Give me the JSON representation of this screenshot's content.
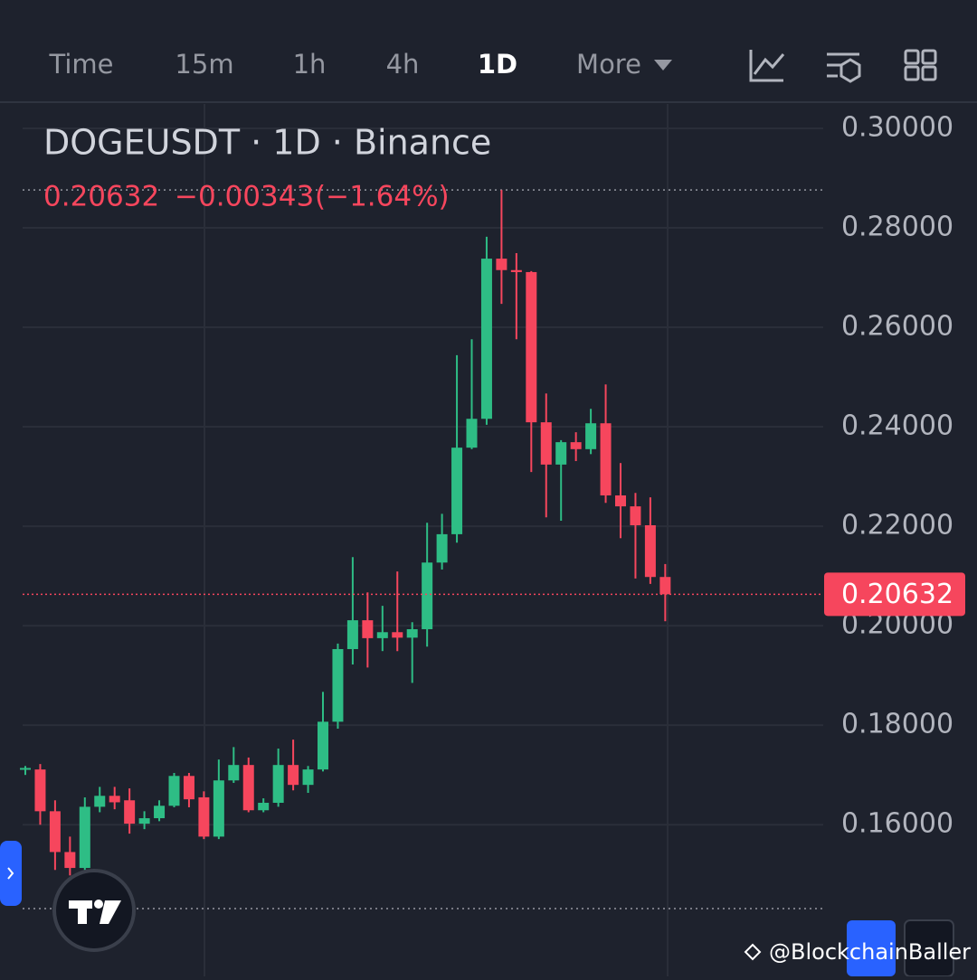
{
  "toolbar": {
    "items": [
      "Time",
      "15m",
      "1h",
      "4h",
      "1D",
      "More"
    ],
    "active": 4
  },
  "header": {
    "title": "DOGEUSDT · 1D · Binance",
    "price": "0.20632",
    "change": "−0.00343",
    "change_pct": "(−1.64%)"
  },
  "watermark": "@BlockchainBaller",
  "chart_data": {
    "type": "candlestick",
    "up_color": "#2ebd85",
    "down_color": "#f6465d",
    "grid": true,
    "ylim": [
      0.1295,
      0.3049
    ],
    "yticks": [
      {
        "value": 0.16,
        "label": "0.16000"
      },
      {
        "value": 0.18,
        "label": "0.18000"
      },
      {
        "value": 0.2,
        "label": "0.20000"
      },
      {
        "value": 0.22,
        "label": "0.22000"
      },
      {
        "value": 0.24,
        "label": "0.24000"
      },
      {
        "value": 0.26,
        "label": "0.26000"
      },
      {
        "value": 0.28,
        "label": "0.28000"
      },
      {
        "value": 0.3,
        "label": "0.30000"
      }
    ],
    "open": [
      0.1712,
      0.1711,
      0.1627,
      0.1545,
      0.1513,
      0.1636,
      0.1658,
      0.1649,
      0.1602,
      0.1613,
      0.1638,
      0.1698,
      0.1655,
      0.1576,
      0.1689,
      0.172,
      0.1629,
      0.1644,
      0.172,
      0.168,
      0.1711,
      0.1807,
      0.1953,
      0.2011,
      0.1975,
      0.1987,
      0.1976,
      0.1993,
      0.2127,
      0.2184,
      0.2358,
      0.2416,
      0.2738,
      0.2715,
      0.2711,
      0.2409,
      0.2324,
      0.2369,
      0.2355,
      0.2407,
      0.2262,
      0.224,
      0.2202,
      0.2098
    ],
    "high": [
      0.1718,
      0.1722,
      0.1649,
      0.1576,
      0.1655,
      0.1676,
      0.1676,
      0.1673,
      0.1627,
      0.1649,
      0.1704,
      0.1704,
      0.1667,
      0.1731,
      0.1756,
      0.1735,
      0.1653,
      0.1753,
      0.1771,
      0.1718,
      0.1867,
      0.1964,
      0.2138,
      0.2067,
      0.204,
      0.2109,
      0.2007,
      0.2207,
      0.2225,
      0.2544,
      0.2576,
      0.2782,
      0.2876,
      0.2749,
      0.2713,
      0.2467,
      0.2373,
      0.2389,
      0.2436,
      0.2485,
      0.2327,
      0.2267,
      0.2258,
      0.2124
    ],
    "low": [
      0.17,
      0.16,
      0.1509,
      0.1498,
      0.1509,
      0.1625,
      0.1631,
      0.1582,
      0.1591,
      0.1607,
      0.1635,
      0.1635,
      0.1571,
      0.1571,
      0.1684,
      0.1625,
      0.1625,
      0.1636,
      0.1669,
      0.1664,
      0.1707,
      0.1793,
      0.1922,
      0.1916,
      0.1949,
      0.1949,
      0.1885,
      0.1958,
      0.2113,
      0.2167,
      0.2355,
      0.2404,
      0.2647,
      0.2576,
      0.2309,
      0.2218,
      0.2211,
      0.2331,
      0.2345,
      0.2247,
      0.2176,
      0.2095,
      0.2084,
      0.2009
    ],
    "close": [
      0.1714,
      0.1627,
      0.1545,
      0.1513,
      0.1636,
      0.1658,
      0.1645,
      0.1602,
      0.1613,
      0.1638,
      0.1698,
      0.1651,
      0.1576,
      0.1689,
      0.172,
      0.1629,
      0.1644,
      0.172,
      0.168,
      0.1711,
      0.1807,
      0.1953,
      0.2011,
      0.1975,
      0.1987,
      0.1976,
      0.1993,
      0.2127,
      0.2184,
      0.2358,
      0.2416,
      0.2738,
      0.2715,
      0.2711,
      0.2409,
      0.2324,
      0.2369,
      0.2355,
      0.2407,
      0.2262,
      0.224,
      0.2202,
      0.2098,
      0.20632
    ]
  }
}
